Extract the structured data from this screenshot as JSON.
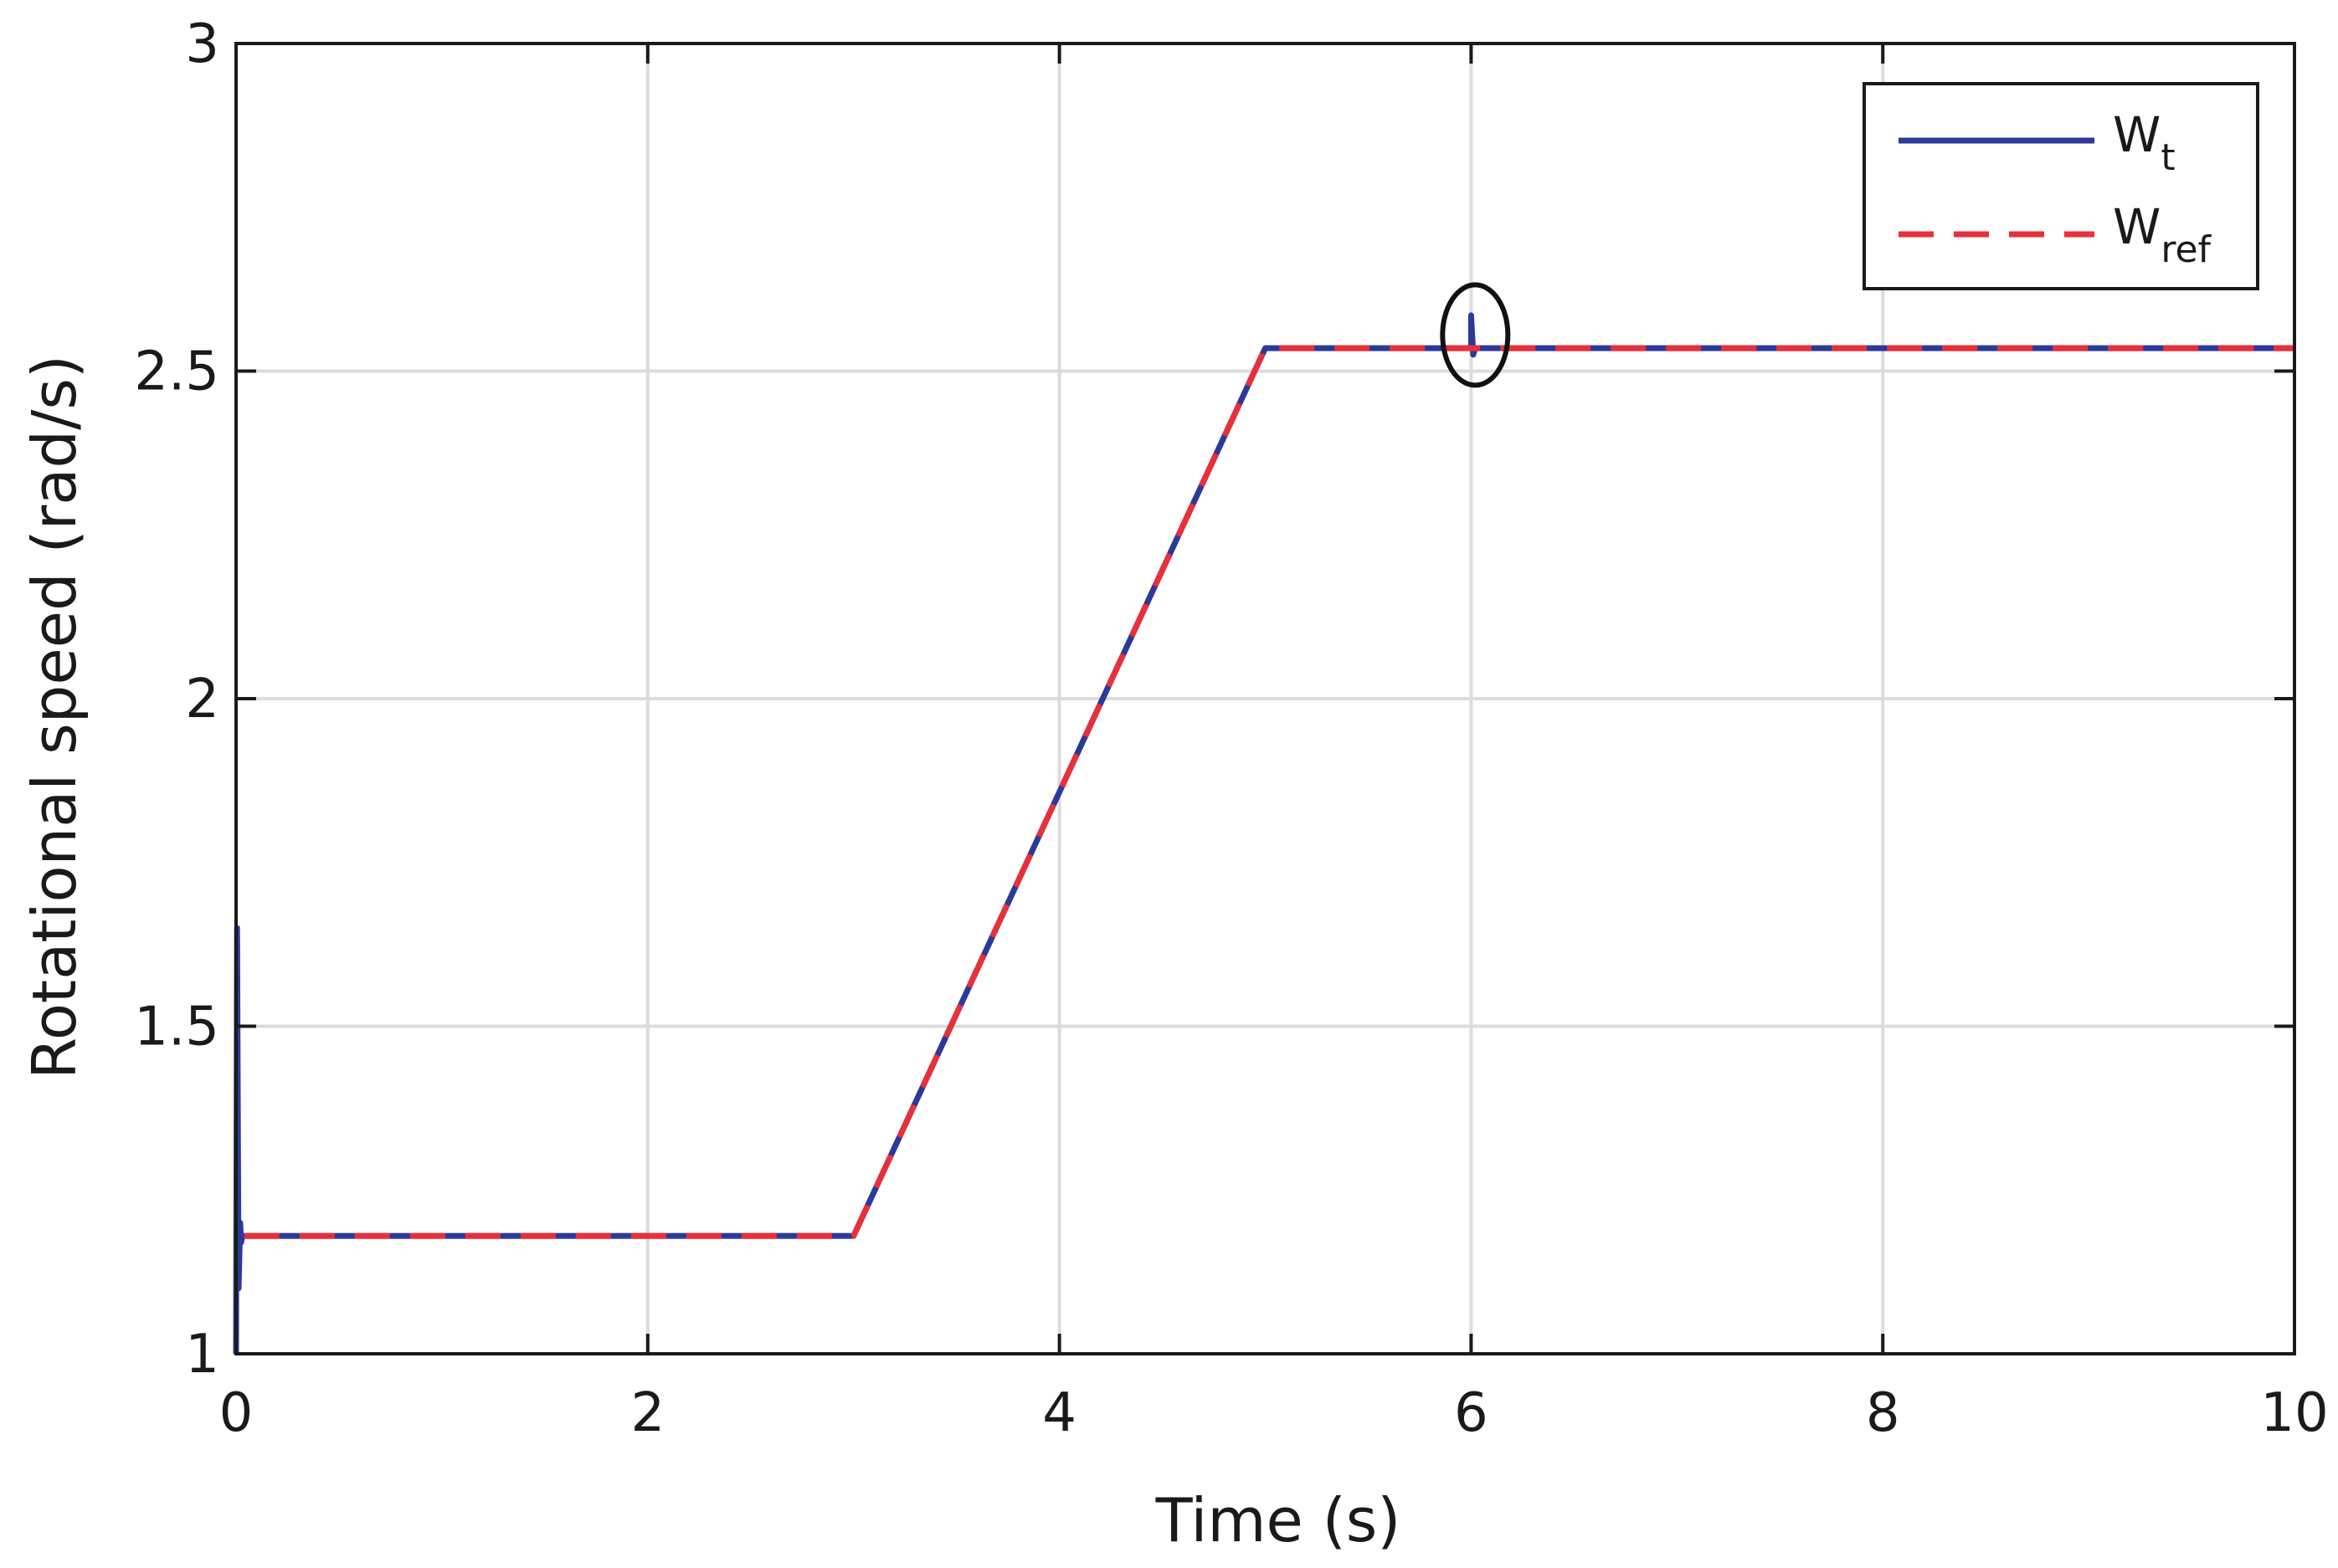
{
  "chart_data": {
    "type": "line",
    "title": "",
    "xlabel": "Time (s)",
    "ylabel": "Rotational speed (rad/s)",
    "xlim": [
      0,
      10
    ],
    "ylim": [
      1,
      3
    ],
    "xticks": [
      0,
      2,
      4,
      6,
      8,
      10
    ],
    "yticks": [
      1,
      1.5,
      2,
      2.5,
      3
    ],
    "xtick_labels": [
      "0",
      "2",
      "4",
      "6",
      "8",
      "10"
    ],
    "ytick_labels": [
      "1",
      "1.5",
      "2",
      "2.5",
      "3"
    ],
    "grid": true,
    "legend_position": "top-right",
    "series": [
      {
        "name": "W",
        "name_sub": "t",
        "color": "#2b3a9a",
        "style": "solid",
        "x": [
          0,
          0.005,
          0.012,
          0.02,
          0.025,
          0.03,
          0.04,
          3.0,
          5.0,
          6.0,
          6.0,
          6.01,
          6.02,
          10.0
        ],
        "y": [
          1.0,
          1.65,
          1.1,
          1.2,
          1.17,
          1.18,
          1.18,
          1.18,
          2.535,
          2.535,
          2.585,
          2.525,
          2.535,
          2.535
        ]
      },
      {
        "name": "W",
        "name_sub": "ref",
        "color": "#e8303a",
        "style": "dashed",
        "x": [
          0.04,
          3.0,
          5.0,
          10.0
        ],
        "y": [
          1.18,
          1.18,
          2.535,
          2.535
        ]
      }
    ],
    "annotations": [
      {
        "type": "ellipse",
        "x": 6.02,
        "y": 2.555
      }
    ]
  }
}
